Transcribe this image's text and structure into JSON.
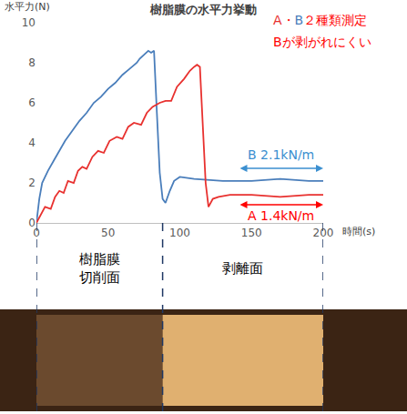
{
  "chart_data": {
    "type": "line",
    "title": "樹脂膜の水平力挙動",
    "y_label": "水平力(N)",
    "x_label": "時間(s)",
    "xlim": [
      0,
      200
    ],
    "xticks": [
      0,
      50,
      100,
      150,
      200
    ],
    "ylim": [
      0,
      10
    ],
    "yticks": [
      0,
      2,
      4,
      6,
      8,
      10
    ],
    "grid": false,
    "series": [
      {
        "name": "B",
        "color": "#4a7ebb",
        "x": [
          0,
          2,
          4,
          8,
          12,
          16,
          20,
          25,
          30,
          35,
          40,
          45,
          50,
          55,
          60,
          65,
          70,
          72,
          75,
          78,
          80,
          82,
          84,
          86,
          88,
          90,
          93,
          96,
          100,
          110,
          130,
          150,
          170,
          190,
          200
        ],
        "values": [
          0,
          1.2,
          2.0,
          2.6,
          3.1,
          3.6,
          4.1,
          4.6,
          5.1,
          5.5,
          6.0,
          6.3,
          6.7,
          7.0,
          7.4,
          7.7,
          8.0,
          8.2,
          8.4,
          8.6,
          8.5,
          8.6,
          5.5,
          2.5,
          1.2,
          1.0,
          1.6,
          2.1,
          2.3,
          2.2,
          2.1,
          2.1,
          2.2,
          2.1,
          2.1
        ]
      },
      {
        "name": "A",
        "color": "#e8312f",
        "x": [
          0,
          3,
          6,
          10,
          13,
          16,
          19,
          22,
          26,
          29,
          32,
          35,
          39,
          43,
          47,
          51,
          56,
          60,
          64,
          68,
          73,
          77,
          81,
          86,
          90,
          94,
          98,
          103,
          107,
          110,
          112,
          114,
          116,
          118,
          120,
          123,
          127,
          135,
          150,
          170,
          190,
          200
        ],
        "values": [
          0,
          0.4,
          0.8,
          0.7,
          1.3,
          1.6,
          1.5,
          2.1,
          2.0,
          2.6,
          2.8,
          2.7,
          3.3,
          3.6,
          3.5,
          4.1,
          4.3,
          4.2,
          4.8,
          5.0,
          4.9,
          5.5,
          5.8,
          6.0,
          6.1,
          6.1,
          6.8,
          7.2,
          7.6,
          7.8,
          7.9,
          7.8,
          5.0,
          2.0,
          0.8,
          1.2,
          1.3,
          1.4,
          1.4,
          1.3,
          1.4,
          1.4
        ]
      }
    ],
    "annotations": [
      {
        "text": "A・B２種類測定",
        "color": "#ff0000"
      },
      {
        "text": "Bが剥がれにくい",
        "color": "#ff0000"
      },
      {
        "text": "B 2.1kN/m",
        "color": "#3b8fd0"
      },
      {
        "text": "A 1.4kN/m",
        "color": "#ff0000"
      }
    ],
    "regions": [
      {
        "label": "樹脂膜切削面",
        "from": 0,
        "to": 88
      },
      {
        "label": "剥離面",
        "from": 88,
        "to": 200
      }
    ]
  }
}
